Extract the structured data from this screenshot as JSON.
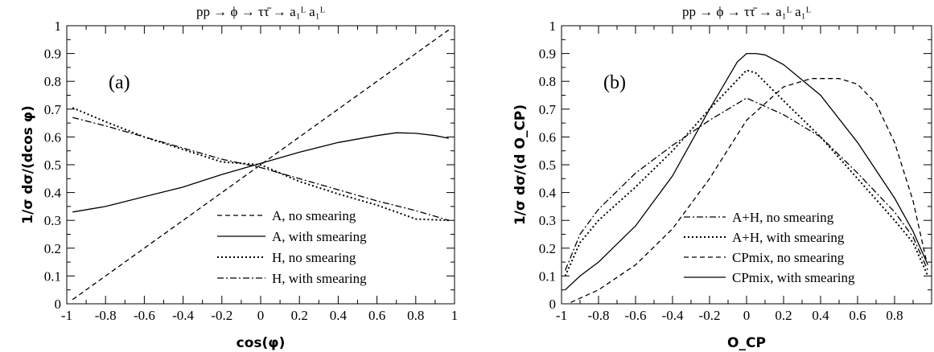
{
  "chart_data": [
    {
      "type": "line",
      "panel_label": "(a)",
      "title": "pp  → ϕ → ττ̄ → a₁ᴸ a₁ᴸ",
      "xlabel": "cos(φ)",
      "ylabel": "1/σ  dσ/(dcos φ)",
      "xlim": [
        -1,
        1
      ],
      "ylim": [
        0,
        1
      ],
      "x_ticks": [
        "-1",
        "-0.8",
        "-0.6",
        "-0.4",
        "-0.2",
        "0",
        "0.2",
        "0.4",
        "0.6",
        "0.8",
        "1"
      ],
      "y_ticks": [
        "0",
        "0.1",
        "0.2",
        "0.3",
        "0.4",
        "0.5",
        "0.6",
        "0.7",
        "0.8",
        "0.9",
        "1"
      ],
      "grid": false,
      "legend_position": "bottom-right",
      "series": [
        {
          "name": "A,  no smearing",
          "style": "dashed",
          "x": [
            -0.97,
            0.97
          ],
          "y": [
            0.015,
            0.985
          ]
        },
        {
          "name": "A,  with smearing",
          "style": "solid",
          "x": [
            -0.97,
            -0.8,
            -0.6,
            -0.4,
            -0.2,
            0.0,
            0.2,
            0.4,
            0.6,
            0.7,
            0.8,
            0.9,
            0.97
          ],
          "y": [
            0.33,
            0.35,
            0.385,
            0.42,
            0.465,
            0.505,
            0.545,
            0.58,
            0.605,
            0.615,
            0.613,
            0.605,
            0.595
          ]
        },
        {
          "name": "H,  no smearing",
          "style": "dotted",
          "x": [
            -0.97,
            -0.8,
            -0.6,
            -0.4,
            -0.2,
            0.0,
            0.2,
            0.4,
            0.6,
            0.8,
            0.97
          ],
          "y": [
            0.705,
            0.655,
            0.6,
            0.555,
            0.51,
            0.5,
            0.44,
            0.395,
            0.355,
            0.305,
            0.3
          ]
        },
        {
          "name": "H,  with smearing",
          "style": "dashdot",
          "x": [
            -0.97,
            -0.8,
            -0.6,
            -0.4,
            -0.2,
            0.0,
            0.2,
            0.4,
            0.6,
            0.8,
            0.97
          ],
          "y": [
            0.67,
            0.64,
            0.6,
            0.56,
            0.52,
            0.49,
            0.45,
            0.41,
            0.37,
            0.335,
            0.3
          ]
        }
      ]
    },
    {
      "type": "line",
      "panel_label": "(b)",
      "title": "pp  → ϕ → ττ̄ → a₁ᴸ a₁ᴸ",
      "xlabel": "O_CP",
      "ylabel": "1/σ  dσ/(d O_CP)",
      "xlim": [
        -1,
        1
      ],
      "ylim": [
        0,
        1
      ],
      "x_ticks": [
        "-1",
        "-0.8",
        "-0.6",
        "-0.4",
        "-0.2",
        "0",
        "0.2",
        "0.4",
        "0.6",
        "0.8"
      ],
      "y_ticks": [
        "0",
        "0.1",
        "0.2",
        "0.3",
        "0.4",
        "0.5",
        "0.6",
        "0.7",
        "0.8",
        "0.9",
        "1"
      ],
      "grid": false,
      "legend_position": "bottom-right",
      "series": [
        {
          "name": "A+H,  no smearing",
          "style": "dashdot",
          "x": [
            -0.98,
            -0.9,
            -0.8,
            -0.6,
            -0.4,
            -0.2,
            0.0,
            0.2,
            0.4,
            0.6,
            0.8,
            0.9,
            0.98
          ],
          "y": [
            0.12,
            0.25,
            0.34,
            0.47,
            0.57,
            0.66,
            0.74,
            0.68,
            0.6,
            0.47,
            0.33,
            0.24,
            0.12
          ]
        },
        {
          "name": "A+H,  with smearing",
          "style": "dotted",
          "x": [
            -0.98,
            -0.9,
            -0.8,
            -0.6,
            -0.4,
            -0.2,
            0.0,
            0.05,
            0.2,
            0.4,
            0.6,
            0.8,
            0.9,
            0.98
          ],
          "y": [
            0.1,
            0.22,
            0.3,
            0.42,
            0.55,
            0.7,
            0.84,
            0.83,
            0.73,
            0.6,
            0.45,
            0.3,
            0.22,
            0.1
          ]
        },
        {
          "name": "CPmix,  no smearing",
          "style": "dashed",
          "x": [
            -0.95,
            -0.8,
            -0.6,
            -0.4,
            -0.2,
            0.0,
            0.2,
            0.35,
            0.5,
            0.6,
            0.7,
            0.8,
            0.9,
            0.97
          ],
          "y": [
            0.005,
            0.05,
            0.14,
            0.27,
            0.45,
            0.66,
            0.78,
            0.81,
            0.81,
            0.79,
            0.72,
            0.58,
            0.37,
            0.16
          ]
        },
        {
          "name": "CPmix,  with smearing",
          "style": "solid",
          "x": [
            -0.98,
            -0.9,
            -0.8,
            -0.6,
            -0.4,
            -0.2,
            -0.05,
            0.0,
            0.05,
            0.1,
            0.2,
            0.4,
            0.6,
            0.8,
            0.9,
            0.98
          ],
          "y": [
            0.05,
            0.1,
            0.15,
            0.28,
            0.46,
            0.7,
            0.87,
            0.9,
            0.9,
            0.895,
            0.86,
            0.75,
            0.58,
            0.38,
            0.26,
            0.14
          ]
        }
      ]
    }
  ]
}
